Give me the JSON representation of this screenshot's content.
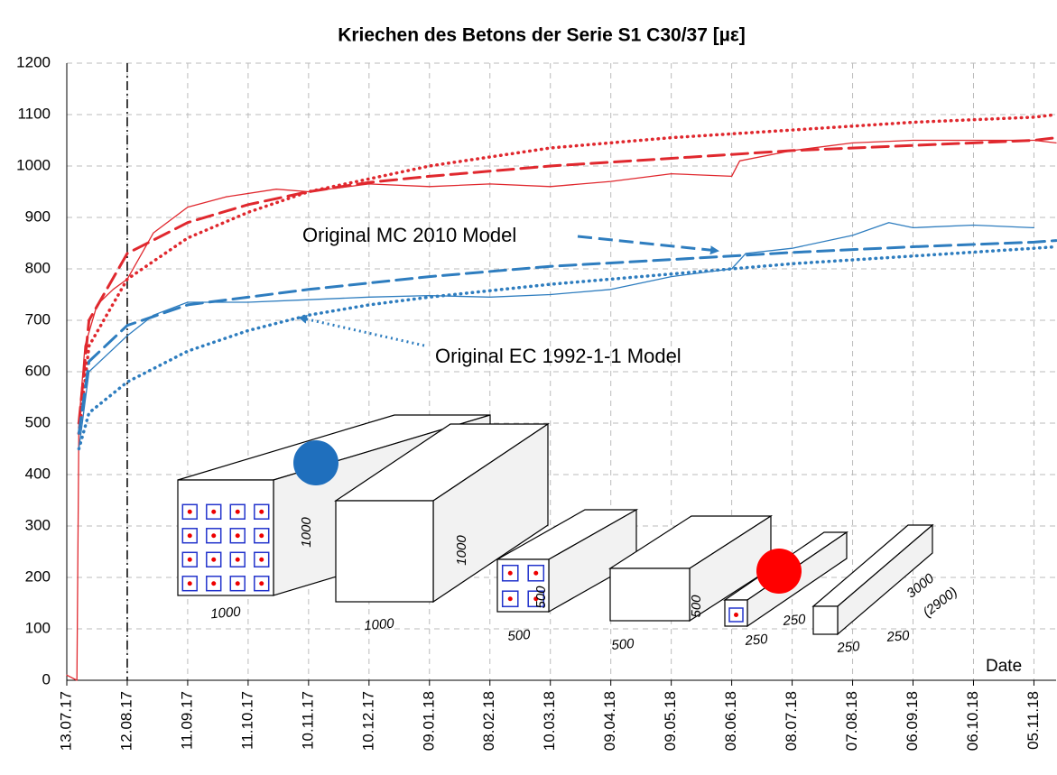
{
  "chart_data": {
    "type": "line",
    "title": "Kriechen des Betons der Serie S1 C30/37 [µε]",
    "x_label": "Date",
    "xlim": [
      "13.07.17",
      "16.11.18"
    ],
    "xticks": [
      "13.07.17",
      "12.08.17",
      "11.09.17",
      "11.10.17",
      "10.11.17",
      "10.12.17",
      "09.01.18",
      "08.02.18",
      "10.03.18",
      "09.04.18",
      "09.05.18",
      "08.06.18",
      "08.07.18",
      "07.08.18",
      "06.09.18",
      "06.10.18",
      "05.11.18"
    ],
    "ylim": [
      0,
      1200
    ],
    "yticks": [
      0,
      100,
      200,
      300,
      400,
      500,
      600,
      700,
      800,
      900,
      1000,
      1100,
      1200
    ],
    "grid": true,
    "vline": "12.08.17",
    "series": [
      {
        "color": "#e0282e",
        "style": "solid",
        "x": [
          "13.07.17",
          "18.07.17",
          "19.07.17",
          "22.07.17",
          "28.07.17",
          "05.08.17",
          "12.08.17",
          "25.08.17",
          "11.09.17",
          "30.09.17",
          "25.10.17",
          "10.11.17",
          "10.12.17",
          "09.01.18",
          "08.02.18",
          "10.03.18",
          "09.04.18",
          "09.05.18",
          "08.06.18",
          "12.06.18",
          "08.07.18",
          "07.08.18",
          "06.09.18",
          "06.10.18",
          "05.11.18",
          "16.11.18"
        ],
        "values": [
          10,
          0,
          500,
          650,
          730,
          760,
          780,
          870,
          920,
          940,
          955,
          950,
          965,
          960,
          965,
          960,
          970,
          985,
          980,
          1010,
          1030,
          1045,
          1050,
          1050,
          1050,
          1045
        ]
      },
      {
        "color": "#e0282e",
        "style": "dashed",
        "x": [
          "19.07.17",
          "24.07.17",
          "12.08.17",
          "11.09.17",
          "11.10.17",
          "10.11.17",
          "10.12.17",
          "09.01.18",
          "10.03.18",
          "09.05.18",
          "08.07.18",
          "06.09.18",
          "05.11.18",
          "16.11.18"
        ],
        "values": [
          500,
          700,
          830,
          890,
          925,
          950,
          968,
          980,
          1000,
          1015,
          1030,
          1040,
          1050,
          1055
        ]
      },
      {
        "color": "#e0282e",
        "style": "dotted",
        "x": [
          "19.07.17",
          "24.07.17",
          "12.08.17",
          "11.09.17",
          "11.10.17",
          "10.11.17",
          "10.12.17",
          "09.01.18",
          "10.03.18",
          "09.05.18",
          "08.07.18",
          "06.09.18",
          "05.11.18",
          "16.11.18"
        ],
        "values": [
          480,
          650,
          780,
          860,
          910,
          950,
          975,
          1000,
          1035,
          1055,
          1070,
          1085,
          1095,
          1100
        ]
      },
      {
        "color": "#2e7dbf",
        "style": "solid",
        "x": [
          "19.07.17",
          "24.07.17",
          "12.08.17",
          "25.08.17",
          "11.09.17",
          "11.10.17",
          "10.11.17",
          "10.12.17",
          "09.01.18",
          "08.02.18",
          "10.03.18",
          "09.04.18",
          "09.05.18",
          "08.06.18",
          "15.06.18",
          "08.07.18",
          "07.08.18",
          "25.08.18",
          "06.09.18",
          "06.10.18",
          "05.11.18"
        ],
        "values": [
          450,
          600,
          670,
          710,
          735,
          735,
          740,
          745,
          748,
          745,
          750,
          760,
          785,
          800,
          830,
          840,
          865,
          890,
          880,
          885,
          880
        ]
      },
      {
        "color": "#2e7dbf",
        "style": "dashed",
        "x": [
          "19.07.17",
          "24.07.17",
          "12.08.17",
          "11.09.17",
          "10.11.17",
          "09.01.18",
          "10.03.18",
          "09.05.18",
          "08.07.18",
          "06.09.18",
          "05.11.18",
          "16.11.18"
        ],
        "values": [
          480,
          620,
          690,
          730,
          760,
          785,
          805,
          818,
          832,
          843,
          852,
          855
        ]
      },
      {
        "color": "#2e7dbf",
        "style": "dotted",
        "x": [
          "19.07.17",
          "24.07.17",
          "12.08.17",
          "11.09.17",
          "11.10.17",
          "10.11.17",
          "10.12.17",
          "09.01.18",
          "10.03.18",
          "09.05.18",
          "08.07.18",
          "06.09.18",
          "05.11.18",
          "16.11.18"
        ],
        "values": [
          450,
          520,
          580,
          640,
          680,
          710,
          730,
          745,
          770,
          790,
          810,
          825,
          840,
          843
        ]
      }
    ],
    "annotations": [
      "Original MC 2010 Model",
      "Original EC 1992-1-1 Model"
    ],
    "figure_labels": [
      "1000",
      "1000",
      "1000",
      "1000",
      "500",
      "500",
      "500",
      "500",
      "250",
      "250",
      "250",
      "250",
      "3000",
      "(2900)"
    ]
  }
}
